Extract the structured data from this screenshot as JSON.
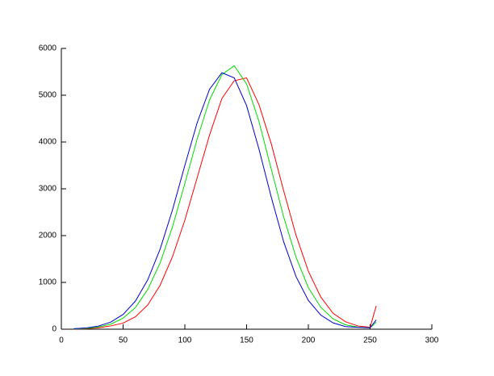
{
  "chart_data": {
    "type": "line",
    "x": [
      10,
      20,
      30,
      40,
      50,
      60,
      70,
      80,
      90,
      100,
      110,
      120,
      130,
      140,
      150,
      160,
      170,
      180,
      190,
      200,
      210,
      220,
      230,
      240,
      250,
      255
    ],
    "series": [
      {
        "name": "red",
        "color": "#ff0000",
        "values": [
          3,
          10,
          30,
          70,
          130,
          265,
          520,
          940,
          1550,
          2330,
          3240,
          4150,
          4930,
          5310,
          5370,
          4800,
          3960,
          2960,
          2010,
          1240,
          690,
          340,
          160,
          70,
          40,
          500
        ]
      },
      {
        "name": "green",
        "color": "#00dd00",
        "values": [
          6,
          18,
          46,
          108,
          236,
          462,
          852,
          1417,
          2188,
          3112,
          4067,
          4899,
          5440,
          5630,
          5240,
          4440,
          3420,
          2400,
          1540,
          890,
          470,
          220,
          95,
          45,
          30,
          150
        ]
      },
      {
        "name": "blue",
        "color": "#0000cc",
        "values": [
          10,
          27,
          67,
          152,
          315,
          601,
          1058,
          1713,
          2550,
          3500,
          4414,
          5128,
          5480,
          5370,
          4777,
          3851,
          2819,
          1869,
          1126,
          615,
          304,
          136,
          56,
          40,
          30,
          200
        ]
      }
    ],
    "xlim": [
      0,
      300
    ],
    "xticks": [
      0,
      50,
      100,
      150,
      200,
      250,
      300
    ],
    "ylim": [
      0,
      6000
    ],
    "yticks": [
      0,
      1000,
      2000,
      3000,
      4000,
      5000,
      6000
    ],
    "grid": false
  }
}
